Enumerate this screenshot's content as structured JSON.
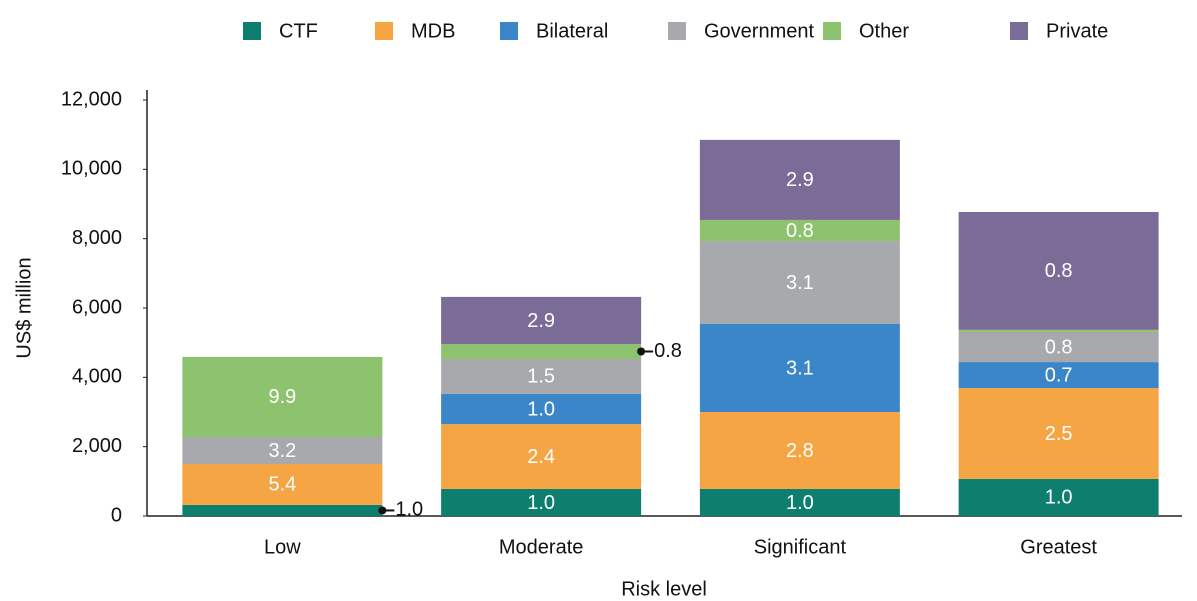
{
  "chart_data": {
    "type": "stacked_bar",
    "categories": [
      "Low",
      "Moderate",
      "Significant",
      "Greatest"
    ],
    "series": [
      {
        "name": "CTF",
        "color": "#0e7f6e",
        "values": [
          320,
          780,
          780,
          1070
        ],
        "segment_labels": [
          "1.0",
          "1.0",
          "1.0",
          "1.0"
        ]
      },
      {
        "name": "MDB",
        "color": "#f5a544",
        "values": [
          1180,
          1870,
          2220,
          2620
        ],
        "segment_labels": [
          "5.4",
          "2.4",
          "2.8",
          "2.5"
        ]
      },
      {
        "name": "Bilateral",
        "color": "#3a86c8",
        "values": [
          0,
          870,
          2540,
          750
        ],
        "segment_labels": [
          null,
          "1.0",
          "3.1",
          "0.7"
        ]
      },
      {
        "name": "Government",
        "color": "#a7a9ac",
        "values": [
          780,
          1010,
          2390,
          870
        ],
        "segment_labels": [
          "3.2",
          "1.5",
          "3.1",
          "0.8"
        ]
      },
      {
        "name": "Other",
        "color": "#8dc26f",
        "values": [
          2310,
          430,
          610,
          60
        ],
        "segment_labels": [
          "9.9",
          "0.8",
          "0.8",
          null
        ]
      },
      {
        "name": "Private",
        "color": "#7a6c97",
        "values": [
          0,
          1360,
          2310,
          3400
        ],
        "segment_labels": [
          null,
          "2.9",
          "2.9",
          "0.8"
        ]
      }
    ],
    "ylim": [
      0,
      12000
    ],
    "yticks": [
      0,
      {
        "value": 2000,
        "label": "2,000"
      },
      {
        "value": 4000,
        "label": "4,000"
      },
      {
        "value": 6000,
        "label": "6,000"
      },
      {
        "value": 8000,
        "label": "8,000"
      },
      {
        "value": 10000,
        "label": "10,000"
      },
      {
        "value": 12000,
        "label": "12,000"
      }
    ],
    "y_label": "US$ million",
    "x_label": "Risk level",
    "legend": "top"
  }
}
